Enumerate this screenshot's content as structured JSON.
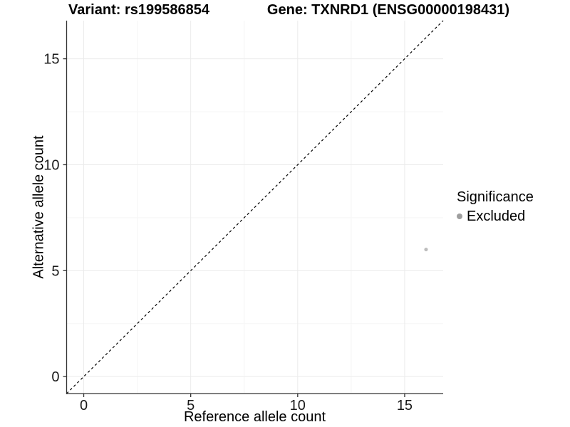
{
  "header": {
    "variant_title": "Variant: rs199586854",
    "gene_title": "Gene: TXNRD1 (ENSG00000198431)"
  },
  "legend": {
    "title": "Significance",
    "items": [
      {
        "label": "Excluded",
        "color": "#9e9e9e",
        "marker": "dot-icon"
      }
    ]
  },
  "chart_data": {
    "type": "scatter",
    "title": "Variant: rs199586854 / Gene: TXNRD1 (ENSG00000198431)",
    "xlabel": "Reference allele count",
    "ylabel": "Alternative allele count",
    "xlim": [
      -0.8,
      16.8
    ],
    "ylim": [
      -0.8,
      16.8
    ],
    "x_ticks": [
      0,
      5,
      10,
      15
    ],
    "y_ticks": [
      0,
      5,
      10,
      15
    ],
    "x_minor_gridlines": [
      2.5,
      7.5,
      12.5
    ],
    "y_minor_gridlines": [
      2.5,
      7.5,
      12.5
    ],
    "grid": "major-and-minor",
    "legend_position": "right",
    "series": [
      {
        "name": "Excluded",
        "color": "#bdbdbd",
        "points": [
          {
            "x": 16,
            "y": 6
          }
        ]
      }
    ],
    "identity_line": {
      "style": "dashed",
      "color": "#000000",
      "from": [
        -0.8,
        -0.8
      ],
      "to": [
        16.8,
        16.8
      ]
    },
    "colors": {
      "grid_major": "#ebebeb",
      "grid_minor": "#f5f5f5",
      "axis_line": "#333333",
      "tick_mark": "#333333",
      "tick_label": "#1a1a1a"
    }
  }
}
